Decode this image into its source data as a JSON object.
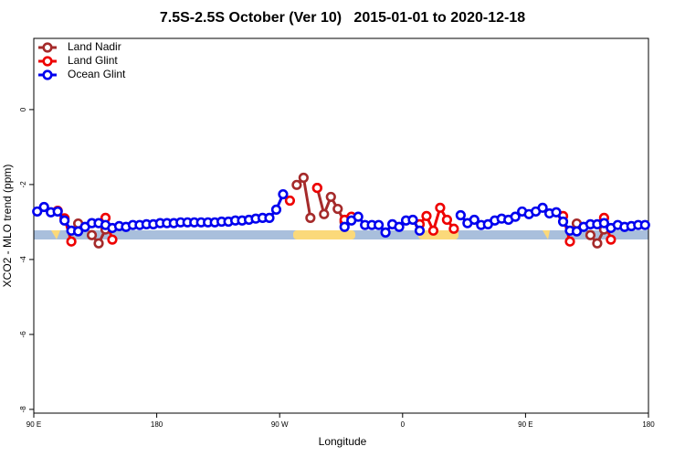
{
  "chart_data": {
    "type": "line",
    "title": "7.5S-2.5S October (Ver 10)   2015-01-01 to 2020-12-18",
    "xlabel": "Longitude",
    "ylabel": "XCO2 - MLO trend (ppm)",
    "xlim": [
      90,
      540
    ],
    "xticks": [
      {
        "value": 90,
        "label": "90 E"
      },
      180,
      {
        "value": 270,
        "label": "90 W"
      },
      {
        "value": 360,
        "label": "0"
      },
      {
        "value": 450,
        "label": "90 E"
      },
      {
        "value": 540,
        "label": "180"
      }
    ],
    "ylim": [
      -8.1,
      1.9
    ],
    "yticks": [
      0,
      -2,
      -4,
      -6,
      -8
    ],
    "legend": "top-left",
    "series": [
      {
        "name": "Land Nadir",
        "color": "#a52a2a",
        "x": [
          122.5,
          null,
          132.5,
          137.5,
          142.5,
          null,
          282.5,
          287.5,
          292.5,
          null,
          297.5,
          302.5,
          307.5,
          312.5,
          317.5,
          null,
          487.5,
          null,
          497.5,
          502.5,
          507.5
        ],
        "values": [
          -3.04,
          null,
          -3.35,
          -3.57,
          -3.2,
          null,
          -2.01,
          -1.82,
          -2.89,
          null,
          -2.09,
          -2.79,
          -2.33,
          -2.65,
          -3.0,
          null,
          -3.04,
          null,
          -3.35,
          -3.57,
          -3.2
        ]
      },
      {
        "name": "Land Glint",
        "color": "#ee0000",
        "x": [
          107.5,
          112.5,
          117.5,
          null,
          142.5,
          147.5,
          null,
          277.5,
          null,
          297.5,
          null,
          317.5,
          322.5,
          null,
          372.5,
          377.5,
          382.5,
          387.5,
          392.5,
          397.5,
          null,
          477.5,
          482.5,
          null,
          507.5,
          512.5
        ],
        "values": [
          -2.7,
          -2.9,
          -3.52,
          null,
          -2.89,
          -3.47,
          null,
          -2.43,
          null,
          -2.09,
          null,
          -2.94,
          -2.86,
          null,
          -3.06,
          -2.84,
          -3.23,
          -2.62,
          -2.94,
          -3.18,
          null,
          -2.84,
          -3.52,
          null,
          -2.89,
          -3.47
        ]
      },
      {
        "name": "Ocean Glint",
        "color": "#0000ee",
        "x": [
          92.5,
          97.5,
          102.5,
          107.5,
          112.5,
          117.5,
          122.5,
          127.5,
          132.5,
          137.5,
          142.5,
          147.5,
          152.5,
          157.5,
          162.5,
          167.5,
          172.5,
          177.5,
          182.5,
          187.5,
          192.5,
          197.5,
          202.5,
          207.5,
          212.5,
          217.5,
          222.5,
          227.5,
          232.5,
          237.5,
          242.5,
          247.5,
          252.5,
          257.5,
          262.5,
          267.5,
          272.5,
          277.5,
          282.5,
          287.5,
          292.5,
          297.5,
          302.5,
          307.5,
          312.5,
          317.5,
          322.5,
          327.5,
          332.5,
          337.5,
          342.5,
          347.5,
          352.5,
          357.5,
          362.5,
          367.5,
          372.5,
          377.5,
          382.5,
          387.5,
          392.5,
          397.5,
          402.5,
          407.5,
          412.5,
          417.5,
          422.5,
          427.5,
          432.5,
          437.5,
          442.5,
          447.5,
          452.5,
          457.5,
          462.5,
          467.5,
          472.5,
          477.5,
          482.5,
          487.5,
          492.5,
          497.5,
          502.5,
          507.5,
          512.5,
          517.5,
          522.5,
          527.5,
          532.5,
          537.5
        ],
        "values": [
          -2.72,
          -2.6,
          -2.74,
          -2.72,
          -2.96,
          -3.23,
          -3.25,
          -3.13,
          -3.03,
          -3.03,
          -3.08,
          -3.16,
          -3.11,
          -3.13,
          -3.08,
          -3.08,
          -3.06,
          -3.06,
          -3.03,
          -3.03,
          -3.03,
          -3.01,
          -3.01,
          -3.01,
          -3.01,
          -3.01,
          -3.01,
          -2.99,
          -2.99,
          -2.96,
          -2.96,
          -2.94,
          -2.91,
          -2.89,
          -2.89,
          -2.67,
          -2.26,
          null,
          null,
          null,
          null,
          null,
          null,
          null,
          null,
          -3.13,
          -2.96,
          -2.86,
          -3.08,
          -3.08,
          -3.08,
          -3.28,
          -3.06,
          -3.13,
          -2.96,
          -2.94,
          -3.23,
          null,
          null,
          null,
          null,
          null,
          -2.82,
          -3.03,
          -2.94,
          -3.08,
          -3.06,
          -2.96,
          -2.91,
          -2.94,
          -2.86,
          -2.72,
          -2.79,
          -2.72,
          -2.62,
          -2.77,
          -2.74,
          -2.99,
          -3.23,
          -3.25,
          -3.13,
          -3.06,
          -3.06,
          -3.03,
          -3.16,
          -3.08,
          -3.13,
          -3.11,
          -3.08,
          -3.08
        ]
      }
    ]
  }
}
